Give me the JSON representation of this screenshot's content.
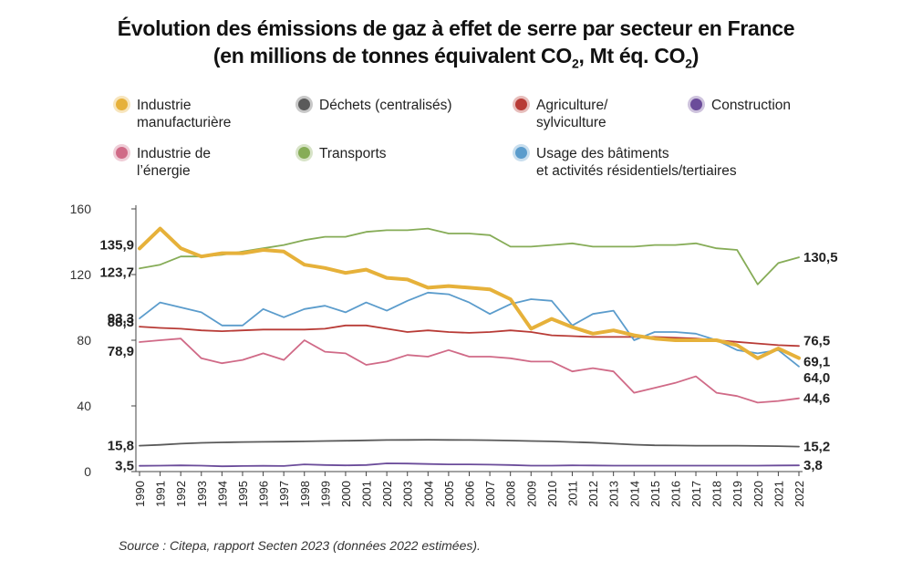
{
  "title": {
    "line1": "Évolution des émissions de gaz à effet de serre par secteur en France",
    "line2_pre": "(en millions de tonnes équivalent CO",
    "line2_sub1": "2",
    "line2_mid": ", Mt éq. CO",
    "line2_sub2": "2",
    "line2_post": ")"
  },
  "source": "Source : Citepa, rapport Secten 2023 (données 2022 estimées).",
  "chart_data": {
    "type": "line",
    "title": "Évolution des émissions de gaz à effet de serre par secteur en France (en millions de tonnes équivalent CO2, Mt éq. CO2)",
    "x": [
      1990,
      1991,
      1992,
      1993,
      1994,
      1995,
      1996,
      1997,
      1998,
      1999,
      2000,
      2001,
      2002,
      2003,
      2004,
      2005,
      2006,
      2007,
      2008,
      2009,
      2010,
      2011,
      2012,
      2013,
      2014,
      2015,
      2016,
      2017,
      2018,
      2019,
      2020,
      2021,
      2022
    ],
    "ylim": [
      0,
      160
    ],
    "yticks": [
      0,
      40,
      80,
      120,
      160
    ],
    "grid": false,
    "legend": "top",
    "series": [
      {
        "name": "Industrie manufacturière",
        "legend_label": "Industrie\nmanufacturière",
        "color": "#e6b13a",
        "emphasis": true,
        "start_label": "135,9",
        "end_label": "69,1",
        "values": [
          135.9,
          148,
          136,
          131,
          133,
          133,
          135,
          134,
          126,
          124,
          121,
          123,
          118,
          117,
          112,
          113,
          112,
          111,
          105,
          87,
          93,
          88,
          84,
          86,
          83,
          81,
          80,
          80,
          80,
          77,
          69,
          75,
          69.1
        ]
      },
      {
        "name": "Déchets (centralisés)",
        "legend_label": "Déchets (centralisés)",
        "color": "#5a5a5a",
        "start_label": "15,8",
        "end_label": "15,2",
        "values": [
          15.8,
          16.3,
          17,
          17.5,
          17.8,
          18,
          18.1,
          18.2,
          18.4,
          18.6,
          18.8,
          19,
          19.2,
          19.3,
          19.4,
          19.3,
          19.2,
          19.1,
          18.9,
          18.6,
          18.4,
          18,
          17.6,
          17,
          16.4,
          16,
          15.9,
          15.8,
          15.8,
          15.8,
          15.6,
          15.5,
          15.2
        ]
      },
      {
        "name": "Agriculture/sylviculture",
        "legend_label": "Agriculture/\nsylviculture",
        "color": "#b83b36",
        "start_label": "88,3",
        "end_label": "76,5",
        "values": [
          88.3,
          87.5,
          87,
          86,
          85.5,
          86,
          86.5,
          86.5,
          86.5,
          87,
          89,
          89,
          87,
          85,
          86,
          85,
          84.5,
          85,
          86,
          85,
          83,
          82.5,
          82,
          82,
          82,
          82,
          81.5,
          81,
          80,
          79,
          78,
          77,
          76.5
        ]
      },
      {
        "name": "Construction",
        "legend_label": "Construction",
        "color": "#6b4c9a",
        "start_label": "3,5",
        "end_label": "3,8",
        "values": [
          3.5,
          3.6,
          3.8,
          3.6,
          3.2,
          3.4,
          3.5,
          3.4,
          4.4,
          4,
          3.8,
          4,
          5,
          4.9,
          4.6,
          4.4,
          4.4,
          4.2,
          4,
          3.6,
          3.6,
          3.8,
          3.7,
          3.6,
          3.6,
          3.6,
          3.6,
          3.6,
          3.6,
          3.6,
          3.6,
          3.7,
          3.8
        ]
      },
      {
        "name": "Industrie de l’énergie",
        "legend_label": "Industrie de\nl’énergie",
        "color": "#d06a87",
        "start_label": "78,9",
        "end_label": "44,6",
        "values": [
          78.9,
          80,
          81,
          69,
          66,
          68,
          72,
          68,
          80,
          73,
          72,
          65,
          67,
          71,
          70,
          74,
          70,
          70,
          69,
          67,
          67,
          61,
          63,
          61,
          48,
          51,
          54,
          58,
          48,
          46,
          42,
          43,
          44.6
        ]
      },
      {
        "name": "Transports",
        "legend_label": "Transports",
        "color": "#86ac57",
        "start_label": "123,7",
        "end_label": "130,5",
        "values": [
          123.7,
          126,
          131,
          131,
          132,
          134,
          136,
          138,
          141,
          143,
          143,
          146,
          147,
          147,
          148,
          145,
          145,
          144,
          137,
          137,
          138,
          139,
          137,
          137,
          137,
          138,
          138,
          139,
          136,
          135,
          114,
          127,
          130.5
        ]
      },
      {
        "name": "Usage des bâtiments et activités résidentiels/tertiaires",
        "legend_label": "Usage des bâtiments\net activités résidentiels/tertiaires",
        "color": "#5b9ccc",
        "start_label": "93,3",
        "end_label": "64,0",
        "values": [
          93.3,
          103,
          100,
          97,
          89,
          89,
          99,
          94,
          99,
          101,
          97,
          103,
          98,
          104,
          109,
          108,
          103,
          96,
          102,
          105,
          104,
          89,
          96,
          98,
          80,
          85,
          85,
          84,
          80,
          74,
          72,
          74,
          64
        ]
      }
    ]
  }
}
